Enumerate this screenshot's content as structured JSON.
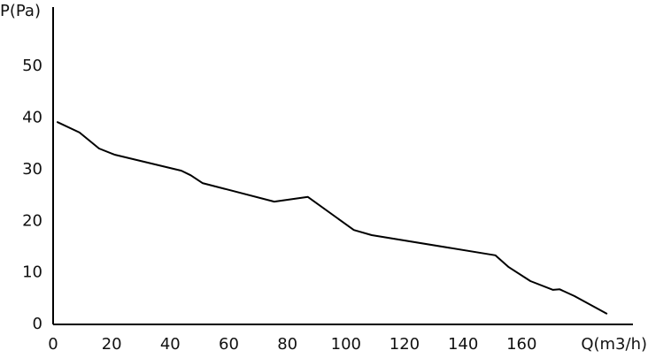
{
  "chart_data": {
    "type": "line",
    "x_label": "Q(m3/h)",
    "y_label": "P(Pa)",
    "xlim": [
      0,
      198
    ],
    "ylim": [
      0,
      61
    ],
    "xticks": [
      0,
      20,
      40,
      60,
      80,
      100,
      120,
      140,
      160
    ],
    "yticks": [
      0,
      10,
      20,
      30,
      40,
      50
    ],
    "grid": false,
    "series": [
      {
        "color": "#000000",
        "x": [
          1.5,
          9,
          15.7,
          21,
          43.8,
          47,
          51,
          75.5,
          87,
          102.7,
          108.8,
          151,
          155.6,
          163,
          170.7,
          173,
          178,
          189
        ],
        "values": [
          39.2,
          37.2,
          34.1,
          32.9,
          29.8,
          28.9,
          27.4,
          23.8,
          24.7,
          18.3,
          17.3,
          13.4,
          11.1,
          8.4,
          6.7,
          6.8,
          5.5,
          2.1
        ]
      }
    ]
  }
}
